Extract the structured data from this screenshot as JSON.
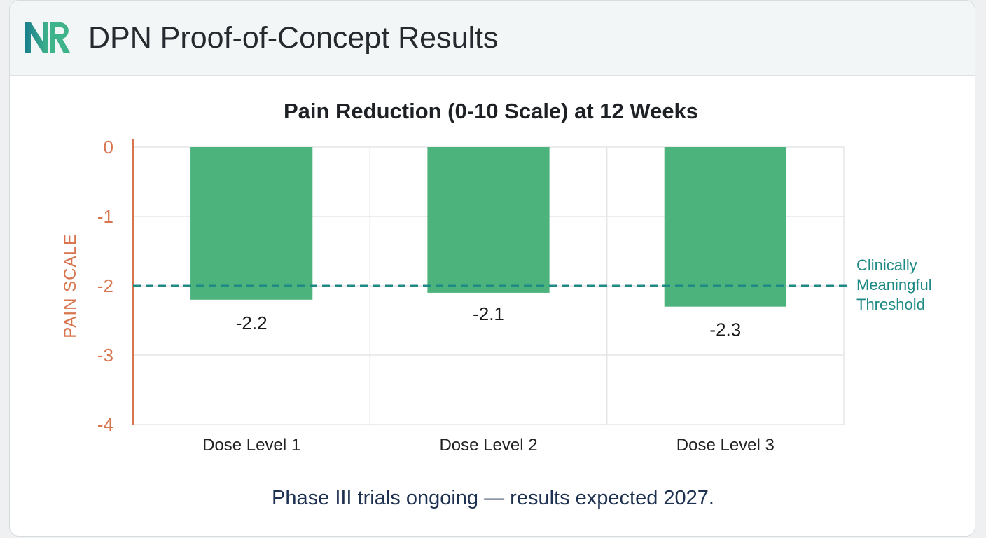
{
  "header": {
    "logo_text": "NR",
    "title": "DPN Proof-of-Concept Results"
  },
  "colors": {
    "bar": "#4cb37c",
    "axis": "#d9754e",
    "threshold": "#1f8a85",
    "grid": "#e3e5e7"
  },
  "chart_data": {
    "type": "bar",
    "title": "Pain Reduction (0-10 Scale) at 12 Weeks",
    "xlabel": "",
    "ylabel": "PAIN SCALE",
    "categories": [
      "Dose Level 1",
      "Dose Level 2",
      "Dose Level 3"
    ],
    "values": [
      -2.2,
      -2.1,
      -2.3
    ],
    "data_labels": [
      "-2.2",
      "-2.1",
      "-2.3"
    ],
    "ylim": [
      -4,
      0
    ],
    "yticks": [
      0,
      -1,
      -2,
      -3,
      -4
    ],
    "grid": true,
    "threshold": {
      "value": -2,
      "label_lines": [
        "Clinically",
        "Meaningful",
        "Threshold"
      ]
    }
  },
  "footer": {
    "note": "Phase III trials ongoing — results expected 2027."
  }
}
